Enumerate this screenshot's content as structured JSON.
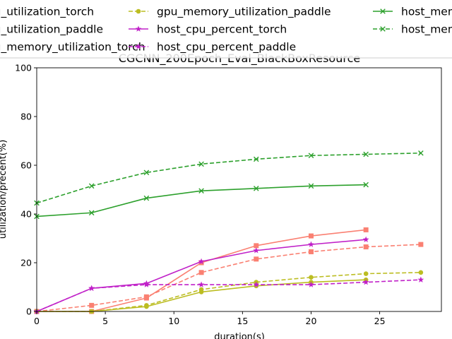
{
  "chart_data": {
    "type": "line",
    "title": "CGCNN_200Epoch_Eval_BlackBoxResource",
    "xlabel": "duration(s)",
    "ylabel": "utilization/precent(%)",
    "xlim": [
      0,
      29.5
    ],
    "ylim": [
      0,
      100
    ],
    "xticks": [
      0,
      5,
      10,
      15,
      20,
      25
    ],
    "yticks": [
      0,
      20,
      40,
      60,
      80,
      100
    ],
    "grid": false,
    "legend_position": "top, three columns, partially clipped",
    "series": [
      {
        "name": "gpu_utilization_torch",
        "color": "#fa8072",
        "dash": false,
        "marker": "square",
        "x": [
          0,
          4,
          8,
          12,
          16,
          20,
          24
        ],
        "y": [
          0,
          0,
          5.5,
          20,
          27,
          31,
          33.5
        ]
      },
      {
        "name": "gpu_utilization_paddle",
        "color": "#fa8072",
        "dash": true,
        "marker": "square",
        "x": [
          0,
          4,
          8,
          12,
          16,
          20,
          24,
          28
        ],
        "y": [
          0,
          2.5,
          6,
          16,
          21.5,
          24.5,
          26.5,
          27.5
        ]
      },
      {
        "name": "gpu_memory_utilization_torch",
        "color": "#bcbd22",
        "dash": false,
        "marker": "circle",
        "x": [
          0,
          4,
          8,
          12,
          16,
          20,
          24
        ],
        "y": [
          0,
          0,
          2,
          8,
          10.5,
          12,
          13
        ]
      },
      {
        "name": "gpu_memory_utilization_paddle",
        "color": "#bcbd22",
        "dash": true,
        "marker": "circle",
        "x": [
          0,
          4,
          8,
          12,
          16,
          20,
          24,
          28
        ],
        "y": [
          0,
          0,
          2.5,
          9,
          12,
          14,
          15.5,
          16
        ]
      },
      {
        "name": "host_cpu_percent_torch",
        "color": "#c020c8",
        "dash": false,
        "marker": "star",
        "x": [
          0,
          4,
          8,
          12,
          16,
          20,
          24
        ],
        "y": [
          0,
          9.5,
          11.5,
          20.5,
          25,
          27.5,
          29.5
        ]
      },
      {
        "name": "host_cpu_percent_paddle",
        "color": "#c020c8",
        "dash": true,
        "marker": "star",
        "x": [
          0,
          4,
          8,
          12,
          16,
          20,
          24,
          28
        ],
        "y": [
          0,
          9.5,
          11,
          11,
          11,
          11,
          12,
          13
        ]
      },
      {
        "name": "host_memory_utilization_torch",
        "color": "#2ca02c",
        "dash": false,
        "marker": "x",
        "x": [
          0,
          4,
          8,
          12,
          16,
          20,
          24
        ],
        "y": [
          39,
          40.5,
          46.5,
          49.5,
          50.5,
          51.5,
          52
        ]
      },
      {
        "name": "host_memory_utilization_paddle",
        "color": "#2ca02c",
        "dash": true,
        "marker": "x",
        "x": [
          0,
          4,
          8,
          12,
          16,
          20,
          24,
          28
        ],
        "y": [
          44.5,
          51.5,
          57,
          60.5,
          62.5,
          64,
          64.5,
          65
        ]
      }
    ]
  }
}
